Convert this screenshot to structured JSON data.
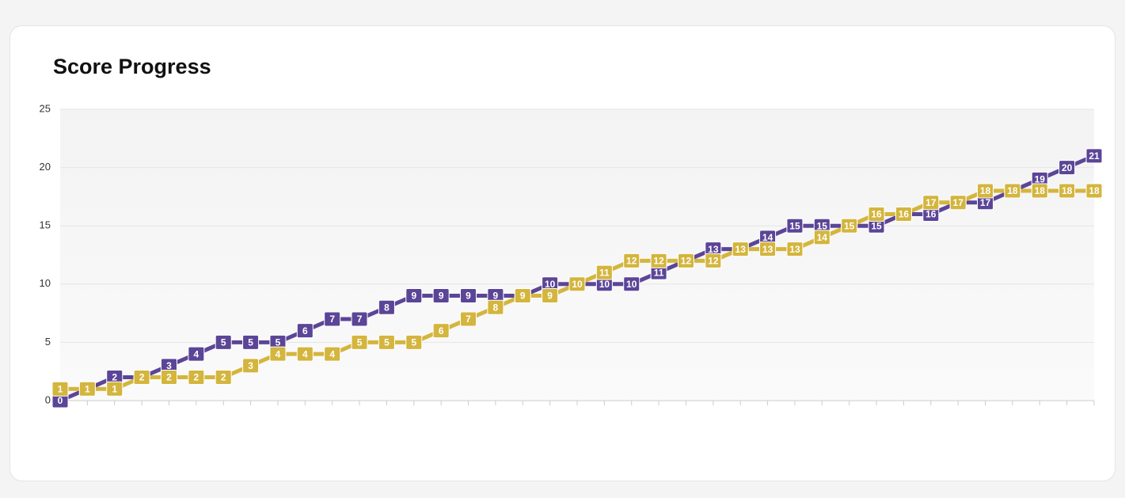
{
  "chart_data": {
    "type": "line",
    "title": "Score Progress",
    "categories": [
      null,
      null,
      null,
      null,
      null,
      null,
      null,
      null,
      null,
      null,
      null,
      null,
      null,
      null,
      null,
      null,
      null,
      null,
      null,
      null,
      null,
      null,
      null,
      null,
      null,
      null,
      null,
      null,
      null,
      null,
      null,
      null,
      null,
      null,
      null,
      null,
      null,
      null,
      null
    ],
    "series": [
      {
        "color": "#5b4597",
        "values": [
          0,
          1,
          2,
          2,
          3,
          4,
          5,
          5,
          5,
          6,
          7,
          7,
          8,
          9,
          9,
          9,
          9,
          9,
          10,
          10,
          10,
          10,
          11,
          12,
          13,
          13,
          14,
          15,
          15,
          15,
          15,
          16,
          16,
          17,
          17,
          18,
          19,
          20,
          21
        ]
      },
      {
        "color": "#d4b53d",
        "values": [
          1,
          1,
          1,
          2,
          2,
          2,
          2,
          3,
          4,
          4,
          4,
          5,
          5,
          5,
          6,
          7,
          8,
          9,
          9,
          10,
          11,
          12,
          12,
          12,
          12,
          13,
          13,
          13,
          14,
          15,
          16,
          16,
          17,
          17,
          18,
          18,
          18,
          18,
          18
        ]
      }
    ],
    "ylim": [
      0,
      25
    ],
    "yticks": [
      0,
      5,
      10,
      15,
      20,
      25
    ],
    "grid": true
  }
}
